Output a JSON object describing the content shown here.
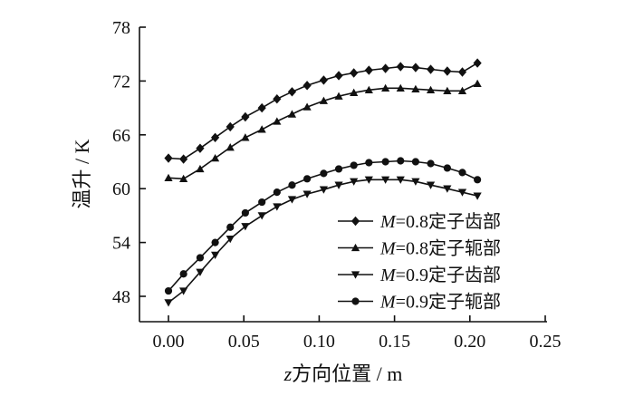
{
  "chart_data": {
    "type": "line",
    "title": "",
    "xlabel": "z方向位置 / m",
    "ylabel": "温升 / K",
    "xlim": [
      -0.02,
      0.25
    ],
    "ylim": [
      45,
      78
    ],
    "x_ticks": [
      "0.00",
      "0.05",
      "0.10",
      "0.15",
      "0.20",
      "0.25"
    ],
    "x_tick_values": [
      0,
      0.05,
      0.1,
      0.15,
      0.2,
      0.25
    ],
    "y_ticks": [
      "48",
      "54",
      "60",
      "66",
      "72",
      "78"
    ],
    "y_tick_values": [
      48,
      54,
      60,
      66,
      72,
      78
    ],
    "grid": false,
    "legend_position": "bottom-right",
    "x": [
      0.0,
      0.01,
      0.021,
      0.031,
      0.041,
      0.051,
      0.062,
      0.072,
      0.082,
      0.092,
      0.103,
      0.113,
      0.123,
      0.133,
      0.144,
      0.154,
      0.164,
      0.174,
      0.185,
      0.195,
      0.205
    ],
    "series": [
      {
        "name": "M=0.8定子齿部",
        "marker": "diamond",
        "values": [
          63.4,
          63.3,
          64.5,
          65.7,
          66.9,
          68.0,
          69.0,
          70.0,
          70.8,
          71.5,
          72.1,
          72.6,
          72.9,
          73.2,
          73.4,
          73.6,
          73.5,
          73.3,
          73.1,
          73.0,
          74.0
        ]
      },
      {
        "name": "M=0.8定子轭部",
        "marker": "triangle-up",
        "values": [
          61.2,
          61.1,
          62.2,
          63.4,
          64.6,
          65.7,
          66.6,
          67.5,
          68.3,
          69.1,
          69.8,
          70.3,
          70.7,
          71.0,
          71.2,
          71.2,
          71.1,
          71.0,
          70.9,
          70.9,
          71.7
        ]
      },
      {
        "name": "M=0.9定子齿部",
        "marker": "triangle-down",
        "values": [
          47.3,
          48.6,
          50.7,
          52.6,
          54.4,
          55.8,
          57.0,
          58.0,
          58.8,
          59.4,
          59.9,
          60.4,
          60.8,
          61.0,
          61.0,
          61.0,
          60.8,
          60.4,
          60.0,
          59.6,
          59.2
        ]
      },
      {
        "name": "M=0.9定子轭部",
        "marker": "circle",
        "values": [
          48.6,
          50.5,
          52.3,
          54.0,
          55.7,
          57.3,
          58.5,
          59.6,
          60.4,
          61.1,
          61.7,
          62.2,
          62.6,
          62.9,
          63.0,
          63.1,
          63.0,
          62.8,
          62.3,
          61.8,
          61.0
        ]
      }
    ]
  },
  "legend": {
    "items": [
      {
        "label": "=0.8定子齿部",
        "italic_prefix": "M"
      },
      {
        "label": "=0.8定子轭部",
        "italic_prefix": "M"
      },
      {
        "label": "=0.9定子齿部",
        "italic_prefix": "M"
      },
      {
        "label": "=0.9定子轭部",
        "italic_prefix": "M"
      }
    ]
  },
  "axes": {
    "xlabel_italic": "z",
    "xlabel_rest": "方向位置 / m",
    "ylabel": "温升 / K"
  },
  "colors": {
    "ink": "#111111",
    "background": "#ffffff"
  }
}
